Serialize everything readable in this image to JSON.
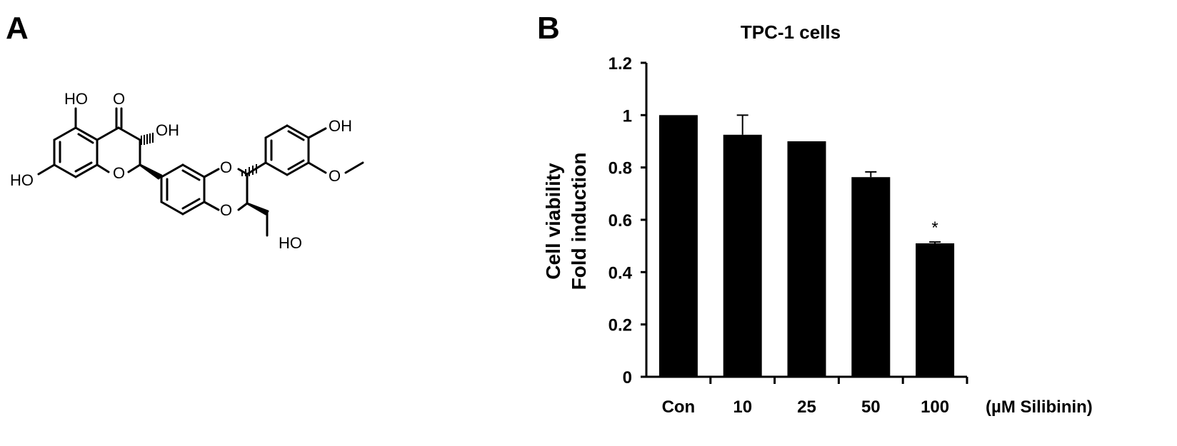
{
  "panels": {
    "a": "A",
    "b": "B"
  },
  "structure": {
    "atoms": {
      "ho_top": "HO",
      "o_keto": "O",
      "oh_c3": "OH",
      "ho_left": "HO",
      "o_ring": "O",
      "o_diox_top": "O",
      "o_diox_bot": "O",
      "oh_phenol": "OH",
      "o_methoxy": "O",
      "ho_ch2": "HO"
    }
  },
  "chart_data": {
    "type": "bar",
    "title": "TPC-1 cells",
    "ylabel_lines": [
      "Cell viability",
      "Fold induction"
    ],
    "xlabel": "(µM Silibinin)",
    "categories": [
      "Con",
      "10",
      "25",
      "50",
      "100"
    ],
    "values": [
      1.0,
      0.925,
      0.9,
      0.763,
      0.51
    ],
    "errors": [
      0,
      0.075,
      0,
      0.02,
      0.005
    ],
    "annotations": [
      "",
      "",
      "",
      "",
      "*"
    ],
    "ylim": [
      0,
      1.2
    ],
    "yticks": [
      "0",
      "0.2",
      "0.4",
      "0.6",
      "0.8",
      "1",
      "1.2"
    ],
    "ytick_values": [
      0,
      0.2,
      0.4,
      0.6,
      0.8,
      1.0,
      1.2
    ],
    "grid": false,
    "bar_color": "#000000"
  }
}
